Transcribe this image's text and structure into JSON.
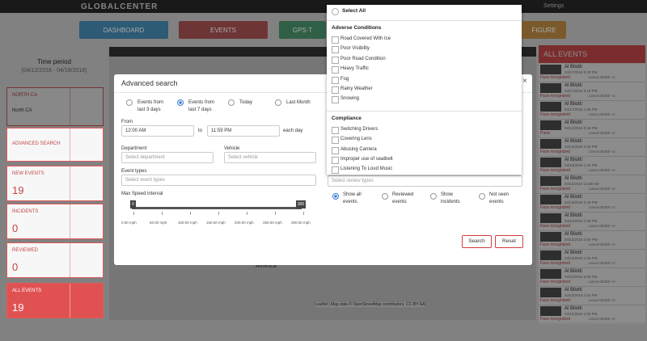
{
  "header": {
    "logo": "GLOBALCENTER",
    "settings": "Settings"
  },
  "nav": [
    "DASHBOARD",
    "EVENTS",
    "GPS-T",
    "FIGURE"
  ],
  "sidebar": {
    "time_period_label": "Time period",
    "time_period_range": "(04/12/2018 - 04/18/2018)",
    "region_label": "NORTH CA",
    "region_value": "North CA",
    "cards": [
      {
        "label": "ADVANCED SEARCH"
      },
      {
        "label": "NEW EVENTS",
        "count": "19"
      },
      {
        "label": "INCIDENTS",
        "count": "0"
      },
      {
        "label": "REVIEWED",
        "count": "0"
      },
      {
        "label": "ALL EVENTS",
        "count": "19"
      }
    ]
  },
  "map": {
    "label": "America",
    "attribution": "Leaflet | Map data © OpenStreetMap contributors, CC-BY-SA"
  },
  "events_panel": {
    "title": "ALL EVENTS",
    "events": [
      {
        "name": "Al Bilotti",
        "datetime": "04/17/2018 5:23 PM",
        "vehicle": "Lexus 0S350 +2",
        "tag": "Face recognized"
      },
      {
        "name": "Al Bilotti",
        "datetime": "04/17/2018 3:16 PM",
        "vehicle": "Lexus 0S350 +2",
        "tag": "Face recognized"
      },
      {
        "name": "Al Bilotti",
        "datetime": "04/17/2018 1:26 PM",
        "vehicle": "Lexus 0S350 +2",
        "tag": "Face recognized"
      },
      {
        "name": "Al Bilotti",
        "datetime": "04/14/2018 2:34 PM",
        "vehicle": "Lexus 0S350 +2",
        "tag": "Panic"
      },
      {
        "name": "Al Bilotti",
        "datetime": "04/14/2018 2:20 PM",
        "vehicle": "Lexus 0S350 +2",
        "tag": "Face recognized"
      },
      {
        "name": "Al Bilotti",
        "datetime": "04/13/2018 1:44 PM",
        "vehicle": "Lexus 0S350 +2",
        "tag": "Face recognized"
      },
      {
        "name": "Al Bilotti",
        "datetime": "04/13/2018 11:58 AM",
        "vehicle": "Lexus 0S350 +2",
        "tag": "Face recognized"
      },
      {
        "name": "Al Bilotti",
        "datetime": "04/13/2018 2:46 PM",
        "vehicle": "Lexus 0S350 +2",
        "tag": "Face recognized"
      },
      {
        "name": "Al Bilotti",
        "datetime": "04/13/2018 2:38 PM",
        "vehicle": "Lexus 0S350 +2",
        "tag": "Face recognized"
      },
      {
        "name": "Al Bilotti",
        "datetime": "04/13/2018 2:50 PM",
        "vehicle": "Lexus 0S350 +2",
        "tag": "Face recognized"
      },
      {
        "name": "Al Bilotti",
        "datetime": "04/13/2018 1:26 PM",
        "vehicle": "Lexus 0S350 +2",
        "tag": "Face recognized"
      },
      {
        "name": "Al Bilotti",
        "datetime": "04/12/2018 3:28 PM",
        "vehicle": "Lexus 0S350 +2",
        "tag": "Face recognized"
      },
      {
        "name": "Al Bilotti",
        "datetime": "04/12/2018 1:54 PM",
        "vehicle": "Lexus 0S350 +2",
        "tag": "Face recognized"
      },
      {
        "name": "Al Bilotti",
        "datetime": "04/12/2018 1:20 PM",
        "vehicle": "Lexus 0S350 +2",
        "tag": "Face recognized"
      }
    ]
  },
  "modal": {
    "title": "Advanced search",
    "periods": [
      "Events from last 3 days",
      "Events from last 7 days",
      "Today",
      "Last Month"
    ],
    "from_label": "From",
    "time_from": "12:00 AM",
    "to_label": "to",
    "time_to": "11:59 PM",
    "each_day": "each day",
    "department_label": "Department",
    "department_placeholder": "Select department",
    "vehicle_label": "Vehicle",
    "vehicle_placeholder": "Select vehicle",
    "event_types_label": "Event types",
    "event_types_placeholder": "Select event types",
    "speed_label": "Max Speed interval",
    "slider_min": "0",
    "slider_max": "300",
    "speed_ticks": [
      "0.00 mph",
      "50.00 mph",
      "100.00 mph",
      "150.00 mph",
      "200.00 mph",
      "250.00 mph",
      "300.00 mph"
    ],
    "review_placeholder": "Select review types",
    "review_options": [
      "Show all events",
      "Reviewed events",
      "Show incidents",
      "Not seen events"
    ],
    "search": "Search",
    "reset": "Reset"
  },
  "dropdown": {
    "select_all": "Select All",
    "groups": [
      {
        "title": "Adverse Conditions",
        "items": [
          "Road Covered With Ice",
          "Poor Visibility",
          "Poor Road Condition",
          "Heavy Traffic",
          "Fog",
          "Rainy Weather",
          "Snowing"
        ]
      },
      {
        "title": "Compliance",
        "items": [
          "Switching Drivers",
          "Covering Lens",
          "Abusing Camera",
          "Improper use of seatbelt",
          "Listening To Loud Music"
        ]
      }
    ]
  }
}
